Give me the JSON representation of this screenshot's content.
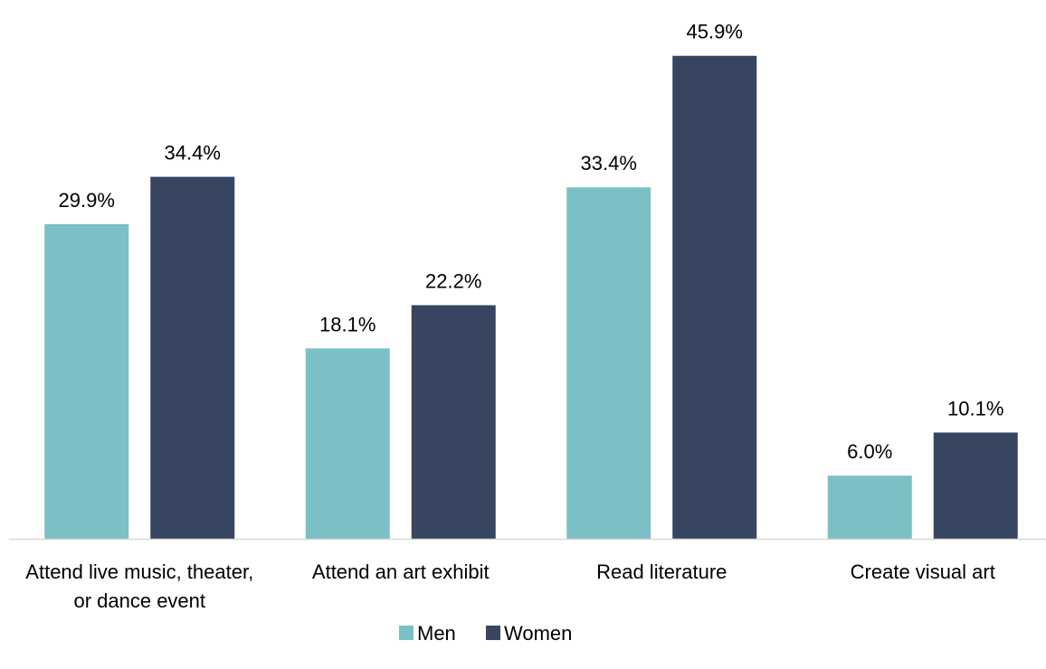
{
  "chart_data": {
    "type": "bar",
    "categories": [
      [
        "Attend live music, theater,",
        "or dance event"
      ],
      [
        "Attend an art exhibit"
      ],
      [
        "Read literature"
      ],
      [
        "Create visual art"
      ]
    ],
    "series": [
      {
        "name": "Men",
        "color": "#7bc0c4",
        "values": [
          29.9,
          18.1,
          33.4,
          6.0
        ],
        "labels": [
          "29.9%",
          "18.1%",
          "33.4%",
          "6.0%"
        ]
      },
      {
        "name": "Women",
        "color": "#374561",
        "values": [
          34.4,
          22.2,
          45.9,
          10.1
        ],
        "labels": [
          "34.4%",
          "22.2%",
          "45.9%",
          "10.1%"
        ]
      }
    ],
    "ylim": [
      0,
      50
    ],
    "grid": false,
    "legend_position": "bottom-center",
    "axis_color": "#d9d9d9"
  }
}
